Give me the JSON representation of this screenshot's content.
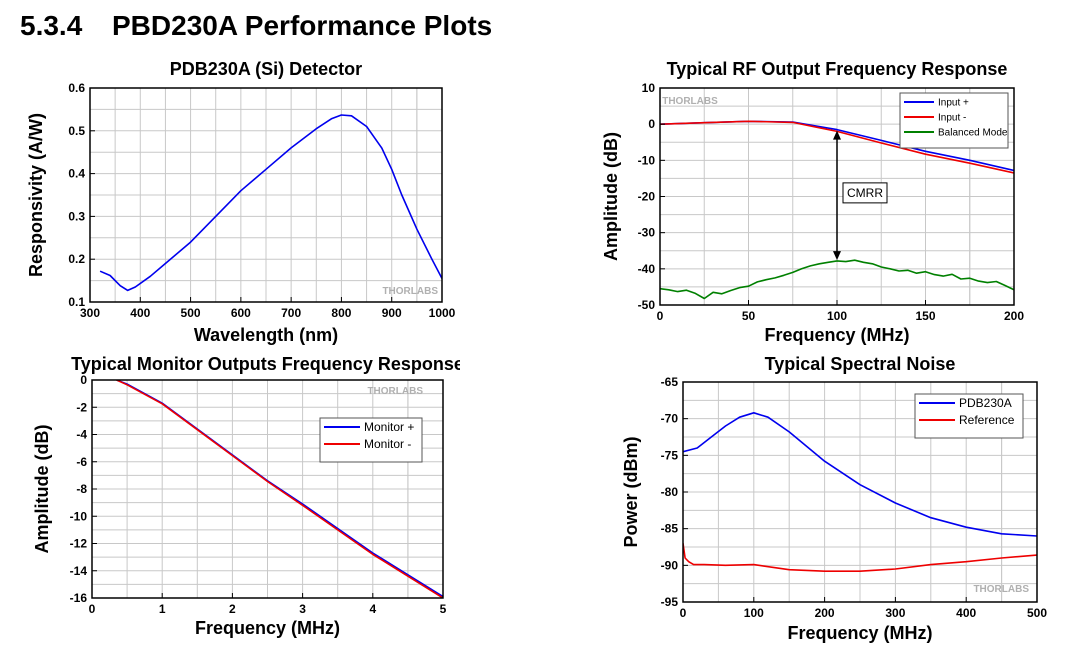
{
  "heading": {
    "number": "5.3.4",
    "text": "PBD230A Performance Plots"
  },
  "chart_data": [
    {
      "id": "detector",
      "type": "line",
      "title": "PDB230A (Si) Detector",
      "xlabel": "Wavelength (nm)",
      "ylabel": "Responsivity (A/W)",
      "xlim": [
        300,
        1000
      ],
      "ylim": [
        0.1,
        0.6
      ],
      "xticks": [
        300,
        400,
        500,
        600,
        700,
        800,
        900,
        1000
      ],
      "yticks": [
        0.1,
        0.2,
        0.3,
        0.4,
        0.5,
        0.6
      ],
      "grid": true,
      "watermark": "THORLABS",
      "series": [
        {
          "color": "#0000ee",
          "x": [
            320,
            340,
            360,
            375,
            390,
            420,
            450,
            500,
            550,
            600,
            650,
            700,
            750,
            780,
            800,
            820,
            850,
            880,
            900,
            920,
            950,
            980,
            1000
          ],
          "y": [
            0.172,
            0.162,
            0.138,
            0.127,
            0.135,
            0.16,
            0.19,
            0.24,
            0.3,
            0.36,
            0.41,
            0.46,
            0.505,
            0.528,
            0.537,
            0.535,
            0.51,
            0.46,
            0.41,
            0.35,
            0.27,
            0.2,
            0.155
          ]
        }
      ]
    },
    {
      "id": "rf",
      "type": "line",
      "title": "Typical RF Output Frequency Response",
      "xlabel": "Frequency (MHz)",
      "ylabel": "Amplitude (dB)",
      "xlim": [
        0,
        200
      ],
      "ylim": [
        -50,
        10
      ],
      "xticks": [
        0,
        50,
        100,
        150,
        200
      ],
      "yticks": [
        10,
        0,
        -10,
        -20,
        -30,
        -40,
        -50
      ],
      "grid": true,
      "watermark": "THORLABS",
      "legend_position": "top-right",
      "annotation": "CMRR",
      "series": [
        {
          "name": "Input +",
          "color": "#0000ee",
          "x": [
            0,
            25,
            50,
            75,
            100,
            125,
            150,
            175,
            200
          ],
          "y": [
            0,
            0.4,
            0.8,
            0.6,
            -1.5,
            -4.5,
            -7.5,
            -10,
            -12.8
          ]
        },
        {
          "name": "Input -",
          "color": "#ee0000",
          "x": [
            0,
            25,
            50,
            75,
            100,
            125,
            150,
            175,
            200
          ],
          "y": [
            0,
            0.4,
            0.8,
            0.5,
            -2.0,
            -5.2,
            -8.3,
            -10.8,
            -13.5
          ]
        },
        {
          "name": "Balanced Mode",
          "color": "#008000",
          "x": [
            0,
            5,
            10,
            15,
            20,
            25,
            30,
            35,
            40,
            45,
            50,
            55,
            60,
            65,
            70,
            75,
            80,
            85,
            90,
            95,
            100,
            105,
            110,
            115,
            120,
            125,
            130,
            135,
            140,
            145,
            150,
            155,
            160,
            165,
            170,
            175,
            180,
            185,
            190,
            195,
            200
          ],
          "y": [
            -45.5,
            -45.8,
            -46.3,
            -45.9,
            -46.8,
            -48.2,
            -46.5,
            -46.9,
            -46.0,
            -45.2,
            -44.8,
            -43.6,
            -43.0,
            -42.5,
            -41.8,
            -41.0,
            -40.0,
            -39.2,
            -38.6,
            -38.2,
            -37.8,
            -38.0,
            -37.6,
            -38.2,
            -38.6,
            -39.5,
            -40.0,
            -40.6,
            -40.4,
            -41.2,
            -40.8,
            -41.6,
            -42.0,
            -41.5,
            -42.8,
            -42.6,
            -43.4,
            -43.8,
            -43.5,
            -44.6,
            -45.8
          ]
        }
      ]
    },
    {
      "id": "monitor",
      "type": "line",
      "title": "Typical Monitor Outputs Frequency Response",
      "xlabel": "Frequency (MHz)",
      "ylabel": "Amplitude (dB)",
      "xlim": [
        0,
        5
      ],
      "ylim": [
        -16,
        0
      ],
      "xticks": [
        0,
        1,
        2,
        3,
        4,
        5
      ],
      "yticks": [
        0,
        -2,
        -4,
        -6,
        -8,
        -10,
        -12,
        -14,
        -16
      ],
      "grid": true,
      "watermark": "THORLABS",
      "legend_position": "right",
      "series": [
        {
          "name": "Monitor +",
          "color": "#0000ee",
          "x": [
            0.35,
            0.5,
            1,
            1.5,
            2,
            2.5,
            3,
            3.5,
            4,
            4.5,
            5
          ],
          "y": [
            0,
            -0.3,
            -1.7,
            -3.6,
            -5.5,
            -7.4,
            -9.1,
            -10.9,
            -12.7,
            -14.3,
            -15.9
          ]
        },
        {
          "name": "Monitor -",
          "color": "#ee0000",
          "x": [
            0.35,
            0.5,
            1,
            1.5,
            2,
            2.5,
            3,
            3.5,
            4,
            4.5,
            5
          ],
          "y": [
            0,
            -0.35,
            -1.75,
            -3.65,
            -5.55,
            -7.45,
            -9.2,
            -11.0,
            -12.8,
            -14.4,
            -16.0
          ]
        }
      ]
    },
    {
      "id": "noise",
      "type": "line",
      "title": "Typical Spectral Noise",
      "xlabel": "Frequency (MHz)",
      "ylabel": "Power (dBm)",
      "xlim": [
        0,
        500
      ],
      "ylim": [
        -95,
        -65
      ],
      "xticks": [
        0,
        100,
        200,
        300,
        400,
        500
      ],
      "yticks": [
        -65,
        -70,
        -75,
        -80,
        -85,
        -90,
        -95
      ],
      "grid": true,
      "watermark": "THORLABS",
      "legend_position": "top-right",
      "series": [
        {
          "name": "PDB230A",
          "color": "#0000ee",
          "x": [
            0,
            20,
            40,
            60,
            80,
            100,
            120,
            150,
            200,
            250,
            300,
            350,
            400,
            450,
            500
          ],
          "y": [
            -74.5,
            -74.0,
            -72.5,
            -71.0,
            -69.8,
            -69.2,
            -69.8,
            -71.8,
            -75.8,
            -79.0,
            -81.5,
            -83.5,
            -84.8,
            -85.7,
            -86.0
          ]
        },
        {
          "name": "Reference",
          "color": "#ee0000",
          "x": [
            0,
            3,
            8,
            15,
            30,
            60,
            100,
            150,
            200,
            250,
            300,
            350,
            400,
            450,
            500
          ],
          "y": [
            -87.0,
            -89.0,
            -89.5,
            -89.9,
            -89.9,
            -90.0,
            -89.9,
            -90.6,
            -90.8,
            -90.8,
            -90.5,
            -89.9,
            -89.5,
            -89.0,
            -88.6
          ]
        }
      ]
    }
  ]
}
